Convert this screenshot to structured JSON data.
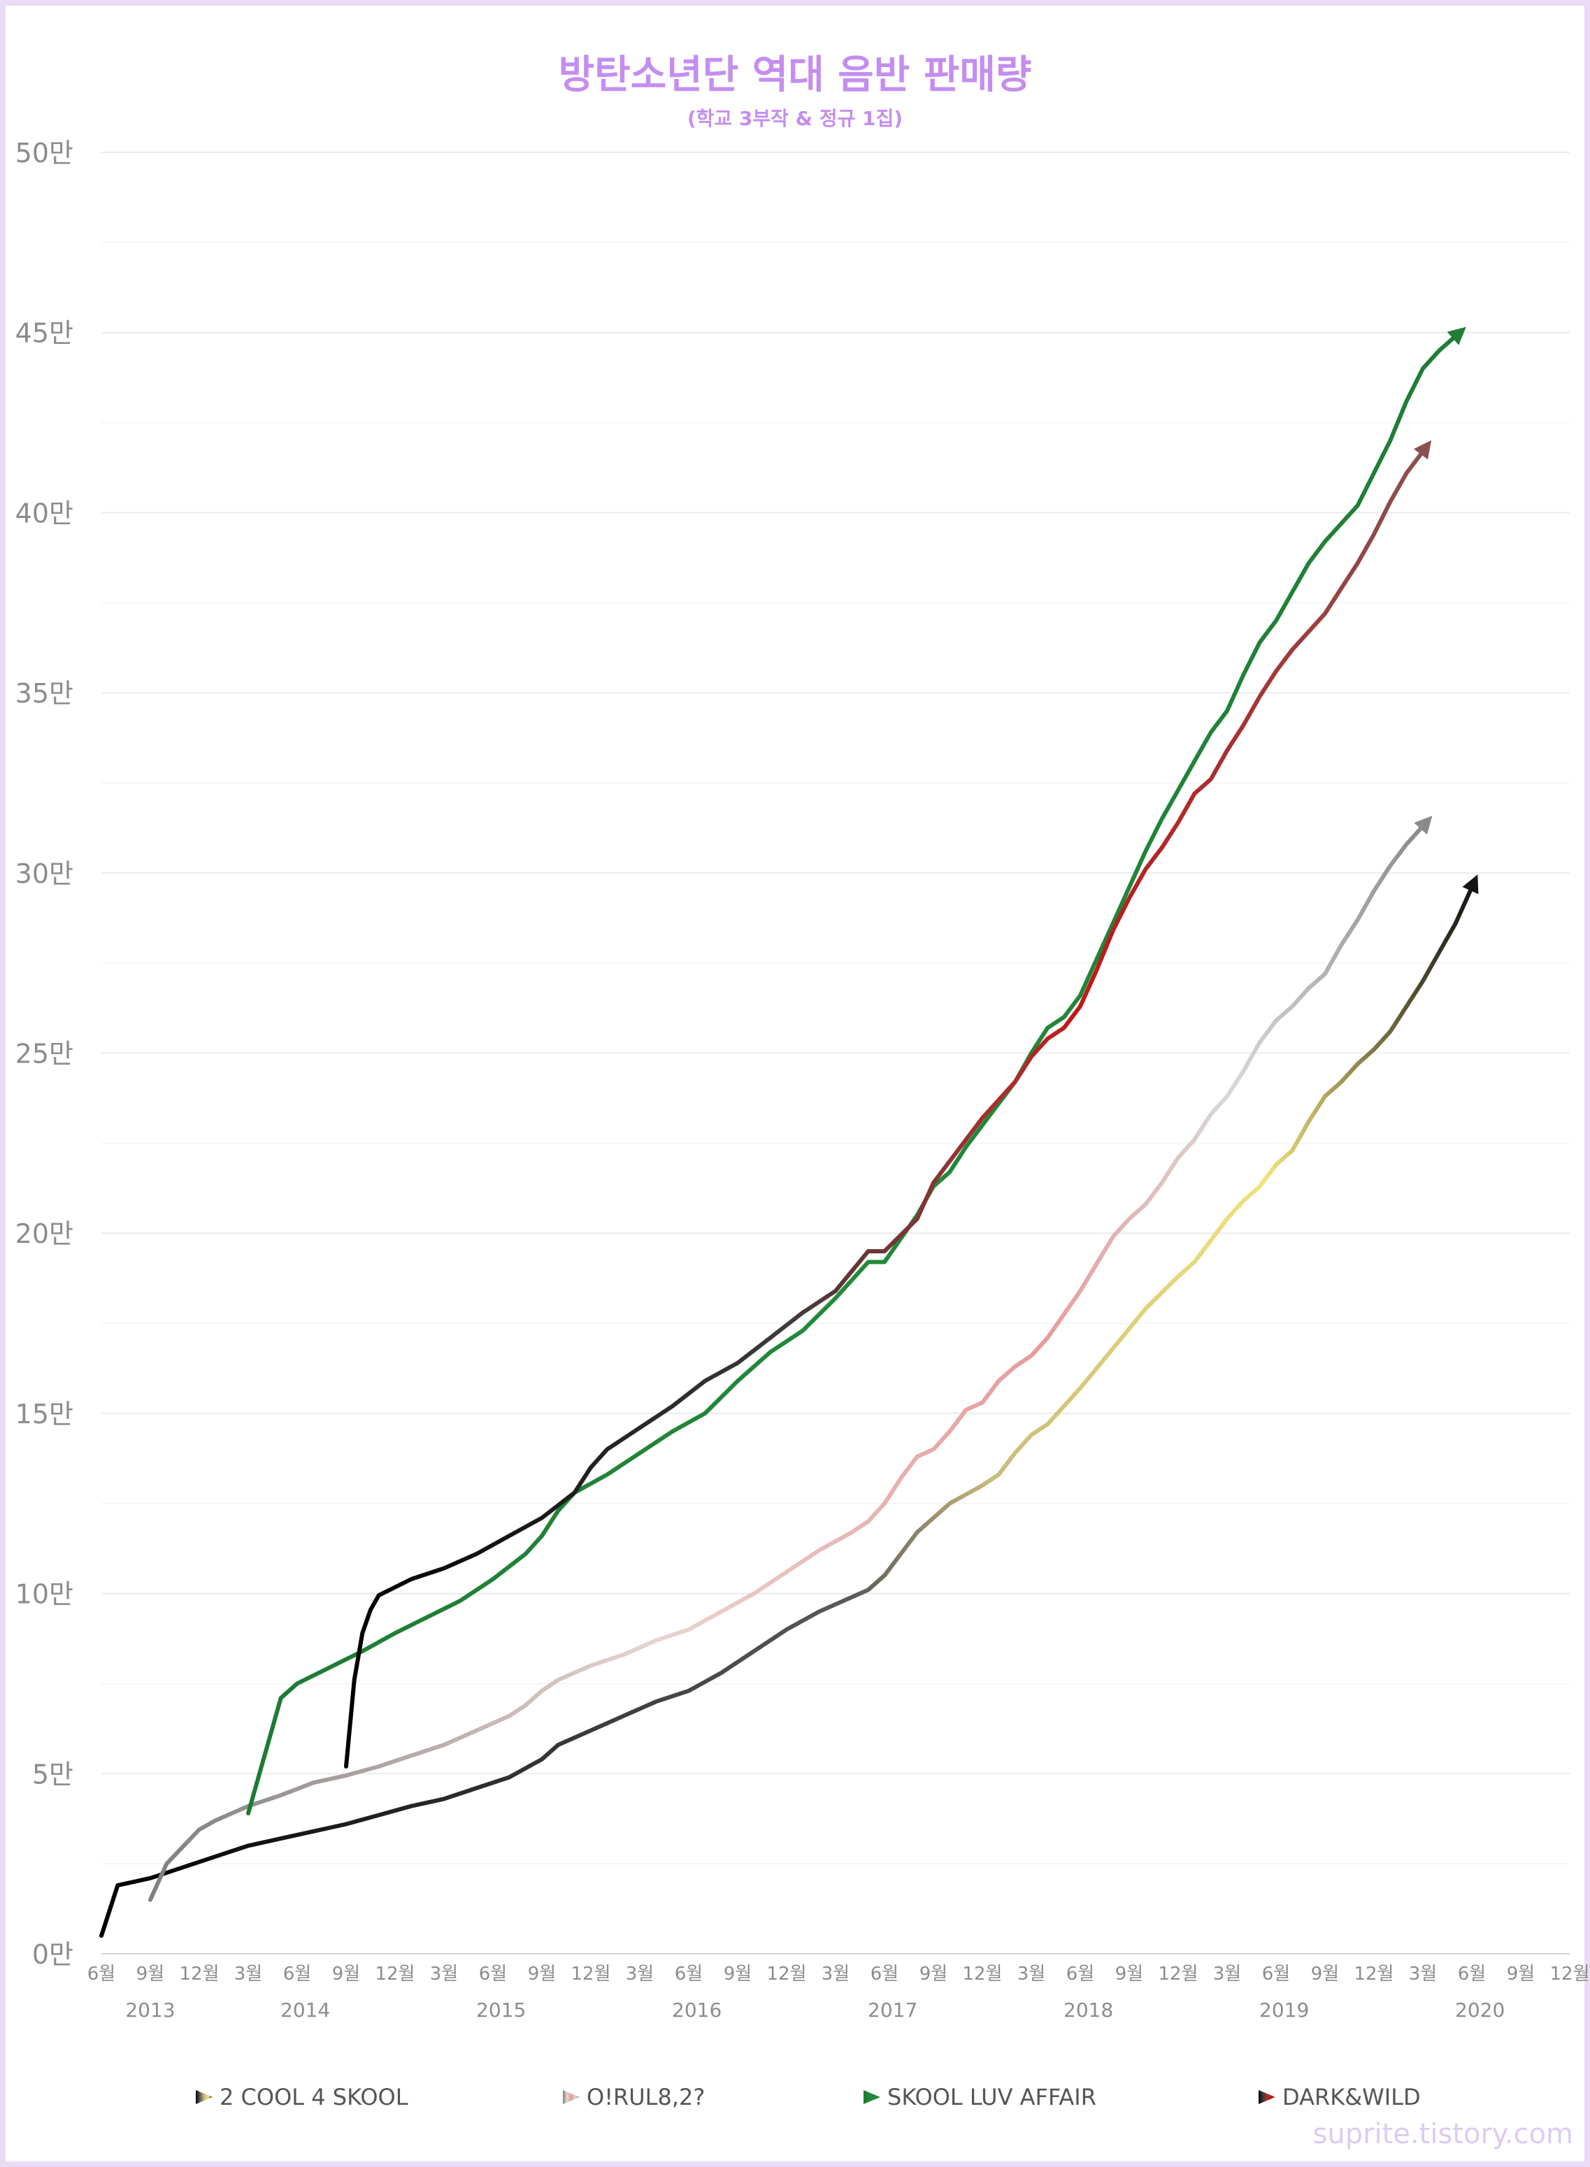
{
  "title": "방탄소년단 역대 음반 판매량",
  "subtitle": "(학교 3부작 & 정규 1집)",
  "watermark": "suprite.tistory.com",
  "chart_data": {
    "type": "line",
    "yunit": "만",
    "ylim": [
      0,
      50
    ],
    "yticks": [
      "0만",
      "5만",
      "10만",
      "15만",
      "20만",
      "25만",
      "30만",
      "35만",
      "40만",
      "45만",
      "50만"
    ],
    "xlim": [
      0,
      90
    ],
    "xtick_labels": [
      "6월",
      "9월",
      "12월",
      "3월",
      "6월",
      "9월",
      "12월",
      "3월",
      "6월",
      "9월",
      "12월",
      "3월",
      "6월",
      "9월",
      "12월",
      "3월",
      "6월",
      "9월",
      "12월",
      "3월",
      "6월",
      "9월",
      "12월",
      "3월",
      "6월",
      "9월",
      "12월",
      "3월",
      "6월",
      "9월",
      "12월"
    ],
    "years": [
      {
        "label": "2013",
        "x": 3
      },
      {
        "label": "2014",
        "x": 12.5
      },
      {
        "label": "2015",
        "x": 24.5
      },
      {
        "label": "2016",
        "x": 36.5
      },
      {
        "label": "2017",
        "x": 48.5
      },
      {
        "label": "2018",
        "x": 60.5
      },
      {
        "label": "2019",
        "x": 72.5
      },
      {
        "label": "2020",
        "x": 84.5
      }
    ],
    "grid": true,
    "legend_position": "bottom",
    "series": [
      {
        "name": "2 COOL 4 SKOOL",
        "color_start": "#000000",
        "color_end": "#000000",
        "legend_color": "#444444",
        "points": [
          [
            0,
            0.5
          ],
          [
            1,
            1.9
          ],
          [
            3,
            2.1
          ],
          [
            5,
            2.4
          ],
          [
            7,
            2.7
          ],
          [
            9,
            3.0
          ],
          [
            11,
            3.2
          ],
          [
            13,
            3.4
          ],
          [
            15,
            3.6
          ],
          [
            17,
            3.85
          ],
          [
            19,
            4.1
          ],
          [
            21,
            4.3
          ],
          [
            23,
            4.6
          ],
          [
            25,
            4.9
          ],
          [
            27,
            5.4
          ],
          [
            28,
            5.8
          ],
          [
            30,
            6.2
          ],
          [
            32,
            6.6
          ],
          [
            34,
            7.0
          ],
          [
            36,
            7.3
          ],
          [
            38,
            7.8
          ],
          [
            40,
            8.4
          ],
          [
            42,
            9.0
          ],
          [
            44,
            9.5
          ],
          [
            46,
            9.9
          ],
          [
            47,
            10.1
          ],
          [
            48,
            10.5
          ],
          [
            49,
            11.1
          ],
          [
            50,
            11.7
          ],
          [
            52,
            12.5
          ],
          [
            54,
            13.0
          ],
          [
            55,
            13.3
          ],
          [
            56,
            13.9
          ],
          [
            57,
            14.4
          ],
          [
            58,
            14.7
          ],
          [
            59,
            15.2
          ],
          [
            60,
            15.7
          ],
          [
            62,
            16.8
          ],
          [
            64,
            17.9
          ],
          [
            66,
            18.8
          ],
          [
            67,
            19.2
          ],
          [
            68,
            19.8
          ],
          [
            69,
            20.4
          ],
          [
            70,
            20.9
          ],
          [
            71,
            21.3
          ],
          [
            72,
            21.9
          ],
          [
            73,
            22.3
          ],
          [
            74,
            23.1
          ],
          [
            75,
            23.8
          ],
          [
            76,
            24.2
          ],
          [
            77,
            24.7
          ],
          [
            78,
            25.1
          ],
          [
            79,
            25.6
          ],
          [
            80,
            26.3
          ],
          [
            81,
            27.0
          ],
          [
            82,
            27.8
          ],
          [
            83,
            28.6
          ],
          [
            84,
            29.6
          ]
        ]
      },
      {
        "name": "O!RUL8,2?",
        "color_start": "#808080",
        "color_end": "#808080",
        "legend_color": "#aaaaaa",
        "points": [
          [
            3,
            1.5
          ],
          [
            4,
            2.5
          ],
          [
            6,
            3.45
          ],
          [
            7,
            3.7
          ],
          [
            9,
            4.1
          ],
          [
            11,
            4.4
          ],
          [
            13,
            4.75
          ],
          [
            15,
            4.95
          ],
          [
            17,
            5.2
          ],
          [
            19,
            5.5
          ],
          [
            21,
            5.8
          ],
          [
            23,
            6.2
          ],
          [
            25,
            6.6
          ],
          [
            26,
            6.9
          ],
          [
            27,
            7.3
          ],
          [
            28,
            7.6
          ],
          [
            30,
            8.0
          ],
          [
            32,
            8.3
          ],
          [
            34,
            8.7
          ],
          [
            36,
            9.0
          ],
          [
            38,
            9.5
          ],
          [
            40,
            10.0
          ],
          [
            42,
            10.6
          ],
          [
            44,
            11.2
          ],
          [
            46,
            11.7
          ],
          [
            47,
            12.0
          ],
          [
            48,
            12.5
          ],
          [
            49,
            13.2
          ],
          [
            50,
            13.8
          ],
          [
            51,
            14.0
          ],
          [
            52,
            14.5
          ],
          [
            53,
            15.1
          ],
          [
            54,
            15.3
          ],
          [
            55,
            15.9
          ],
          [
            56,
            16.3
          ],
          [
            57,
            16.6
          ],
          [
            58,
            17.1
          ],
          [
            60,
            18.4
          ],
          [
            62,
            19.9
          ],
          [
            63,
            20.4
          ],
          [
            64,
            20.8
          ],
          [
            65,
            21.4
          ],
          [
            66,
            22.1
          ],
          [
            67,
            22.6
          ],
          [
            68,
            23.3
          ],
          [
            69,
            23.8
          ],
          [
            70,
            24.5
          ],
          [
            71,
            25.3
          ],
          [
            72,
            25.9
          ],
          [
            73,
            26.3
          ],
          [
            74,
            26.8
          ],
          [
            75,
            27.2
          ],
          [
            76,
            28.0
          ],
          [
            77,
            28.7
          ],
          [
            78,
            29.5
          ],
          [
            79,
            30.2
          ],
          [
            80,
            30.8
          ],
          [
            81,
            31.3
          ]
        ]
      },
      {
        "name": "SKOOL LUV AFFAIR",
        "color_start": "#1e7a34",
        "color_end": "#1e7a34",
        "legend_color": "#1e7a34",
        "points": [
          [
            9,
            3.9
          ],
          [
            11,
            7.1
          ],
          [
            12,
            7.5
          ],
          [
            14,
            7.95
          ],
          [
            16,
            8.4
          ],
          [
            18,
            8.9
          ],
          [
            20,
            9.35
          ],
          [
            22,
            9.8
          ],
          [
            24,
            10.4
          ],
          [
            26,
            11.1
          ],
          [
            27,
            11.6
          ],
          [
            28,
            12.3
          ],
          [
            29,
            12.8
          ],
          [
            31,
            13.3
          ],
          [
            33,
            13.9
          ],
          [
            35,
            14.5
          ],
          [
            37,
            15.0
          ],
          [
            39,
            15.9
          ],
          [
            41,
            16.7
          ],
          [
            43,
            17.3
          ],
          [
            45,
            18.2
          ],
          [
            46,
            18.7
          ],
          [
            47,
            19.2
          ],
          [
            48,
            19.2
          ],
          [
            50,
            20.5
          ],
          [
            51,
            21.3
          ],
          [
            52,
            21.7
          ],
          [
            53,
            22.4
          ],
          [
            54,
            23.0
          ],
          [
            55,
            23.6
          ],
          [
            56,
            24.2
          ],
          [
            57,
            25.0
          ],
          [
            58,
            25.7
          ],
          [
            59,
            26.0
          ],
          [
            60,
            26.6
          ],
          [
            61,
            27.6
          ],
          [
            62,
            28.6
          ],
          [
            63,
            29.6
          ],
          [
            64,
            30.6
          ],
          [
            65,
            31.5
          ],
          [
            66,
            32.3
          ],
          [
            67,
            33.1
          ],
          [
            68,
            33.9
          ],
          [
            69,
            34.5
          ],
          [
            70,
            35.5
          ],
          [
            71,
            36.4
          ],
          [
            72,
            37.0
          ],
          [
            73,
            37.8
          ],
          [
            74,
            38.6
          ],
          [
            75,
            39.2
          ],
          [
            76,
            39.7
          ],
          [
            77,
            40.2
          ],
          [
            78,
            41.1
          ],
          [
            79,
            42.0
          ],
          [
            80,
            43.1
          ],
          [
            81,
            44.0
          ],
          [
            82,
            44.5
          ],
          [
            83,
            44.9
          ]
        ]
      },
      {
        "name": "DARK&WILD",
        "color_start": "#000000",
        "color_end": "#000000",
        "legend_color": "#222222",
        "points": [
          [
            15,
            5.2
          ],
          [
            15.5,
            7.6
          ],
          [
            16,
            8.9
          ],
          [
            16.5,
            9.55
          ],
          [
            17,
            9.95
          ],
          [
            19,
            10.4
          ],
          [
            21,
            10.7
          ],
          [
            23,
            11.1
          ],
          [
            25,
            11.6
          ],
          [
            27,
            12.1
          ],
          [
            29,
            12.8
          ],
          [
            30,
            13.5
          ],
          [
            31,
            14.0
          ],
          [
            33,
            14.6
          ],
          [
            35,
            15.2
          ],
          [
            37,
            15.9
          ],
          [
            39,
            16.4
          ],
          [
            41,
            17.1
          ],
          [
            43,
            17.8
          ],
          [
            45,
            18.4
          ],
          [
            47,
            19.5
          ],
          [
            48,
            19.5
          ],
          [
            50,
            20.4
          ],
          [
            51,
            21.4
          ],
          [
            52,
            22.0
          ],
          [
            53,
            22.6
          ],
          [
            54,
            23.2
          ],
          [
            55,
            23.7
          ],
          [
            56,
            24.2
          ],
          [
            57,
            24.9
          ],
          [
            58,
            25.4
          ],
          [
            59,
            25.7
          ],
          [
            60,
            26.3
          ],
          [
            61,
            27.3
          ],
          [
            62,
            28.4
          ],
          [
            63,
            29.3
          ],
          [
            64,
            30.1
          ],
          [
            65,
            30.7
          ],
          [
            66,
            31.4
          ],
          [
            67,
            32.2
          ],
          [
            68,
            32.6
          ],
          [
            69,
            33.4
          ],
          [
            70,
            34.1
          ],
          [
            71,
            34.9
          ],
          [
            72,
            35.6
          ],
          [
            73,
            36.2
          ],
          [
            74,
            36.7
          ],
          [
            75,
            37.2
          ],
          [
            76,
            37.9
          ],
          [
            77,
            38.6
          ],
          [
            78,
            39.4
          ],
          [
            79,
            40.3
          ],
          [
            80,
            41.1
          ],
          [
            81,
            41.7
          ]
        ]
      }
    ]
  }
}
